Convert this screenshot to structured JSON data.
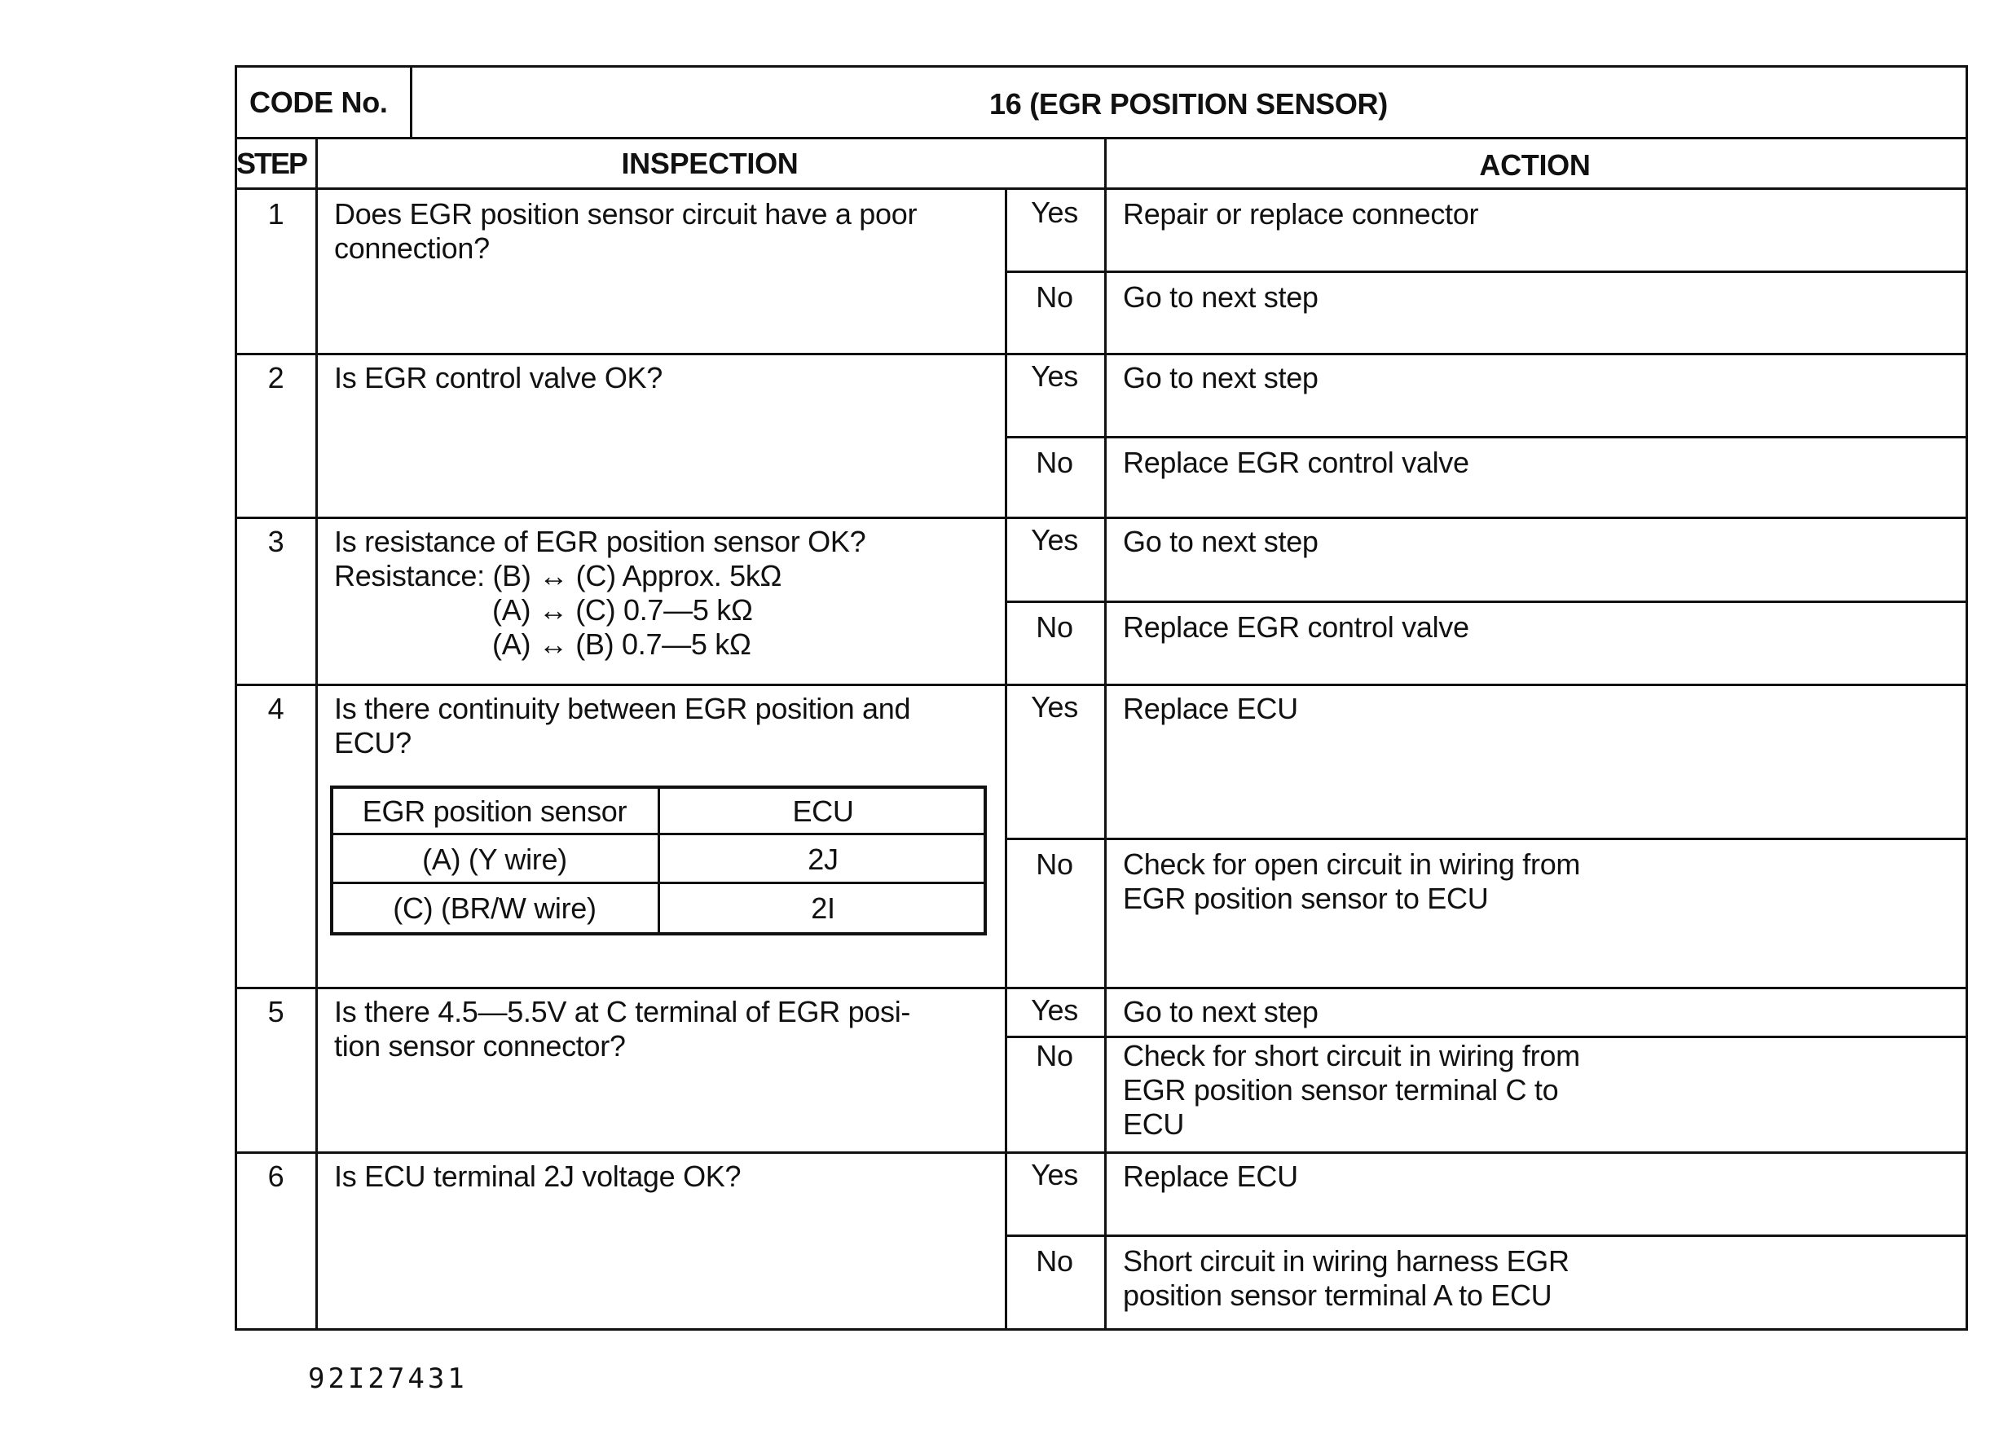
{
  "header": {
    "code_label": "CODE No.",
    "code_value": "16 (EGR POSITION SENSOR)",
    "step_label": "STEP",
    "inspection_label": "INSPECTION",
    "action_label": "ACTION"
  },
  "steps": [
    {
      "step": "1",
      "inspection": "Does EGR position sensor circuit have a poor\nconnection?",
      "yes_label": "Yes",
      "yes_action": "Repair or replace connector",
      "no_label": "No",
      "no_action": "Go to next step"
    },
    {
      "step": "2",
      "inspection": "Is EGR control valve OK?",
      "yes_label": "Yes",
      "yes_action": "Go to next step",
      "no_label": "No",
      "no_action": "Replace EGR control valve"
    },
    {
      "step": "3",
      "inspection": "Is resistance of EGR position sensor OK?\nResistance: (B) ↔ (C) Approx. 5kΩ\n                    (A) ↔ (C) 0.7—5 kΩ\n                    (A) ↔ (B) 0.7—5 kΩ",
      "yes_label": "Yes",
      "yes_action": "Go to next step",
      "no_label": "No",
      "no_action": "Replace EGR control valve"
    },
    {
      "step": "4",
      "inspection": "Is there continuity between EGR position and\nECU?",
      "yes_label": "Yes",
      "yes_action": "Replace ECU",
      "no_label": "No",
      "no_action": "Check for open circuit in wiring from\nEGR position sensor to ECU"
    },
    {
      "step": "5",
      "inspection": "Is there 4.5—5.5V at C terminal of EGR posi-\ntion sensor connector?",
      "yes_label": "Yes",
      "yes_action": "Go to next step",
      "no_label": "No",
      "no_action": "Check for short circuit in wiring from\nEGR position sensor terminal C to\nECU"
    },
    {
      "step": "6",
      "inspection": "Is ECU terminal 2J voltage OK?",
      "yes_label": "Yes",
      "yes_action": "Replace ECU",
      "no_label": "No",
      "no_action": "Short circuit in wiring harness EGR\nposition sensor terminal A to ECU"
    }
  ],
  "continuity_table": {
    "headers": [
      "EGR position sensor",
      "ECU"
    ],
    "rows": [
      [
        "(A) (Y wire)",
        "2J"
      ],
      [
        "(C) (BR/W wire)",
        "2I"
      ]
    ]
  },
  "footer_code": "92I27431"
}
